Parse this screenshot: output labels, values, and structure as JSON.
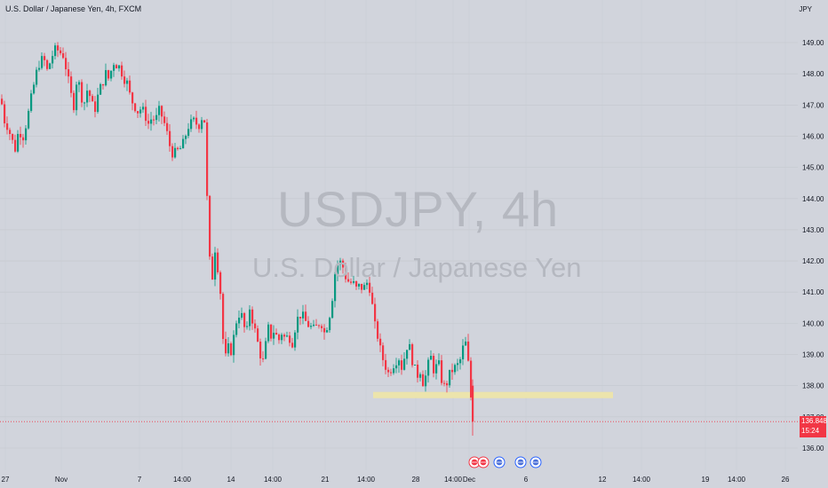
{
  "header": {
    "title": "U.S. Dollar / Japanese Yen, 4h, FXCM"
  },
  "axis": {
    "currency": "JPY"
  },
  "watermark": {
    "symbol": "USDJPY, 4h",
    "name": "U.S. Dollar / Japanese Yen"
  },
  "last_price": {
    "value": "136.848",
    "countdown": "15:24"
  },
  "colors": {
    "up": "#089981",
    "down": "#f23645",
    "background": "#d1d4dc",
    "zone": "#f1e6a3"
  },
  "chart_data": {
    "type": "candlestick",
    "title": "U.S. Dollar / Japanese Yen, 4h, FXCM",
    "xlabel": "",
    "ylabel": "",
    "ylim": [
      135.6,
      149.7
    ],
    "y_ticks": [
      "149.00",
      "148.00",
      "147.00",
      "146.00",
      "145.00",
      "144.00",
      "143.00",
      "142.00",
      "141.00",
      "140.00",
      "139.00",
      "138.00",
      "137.00",
      "136.00"
    ],
    "x_ticks": [
      "27",
      "Nov",
      "7",
      "14:00",
      "14",
      "14:00",
      "21",
      "14:00",
      "28",
      "14:00",
      "Dec",
      "6",
      "12",
      "14:00",
      "19",
      "14:00",
      "26"
    ],
    "grid": true,
    "support_zone": [
      137.6,
      137.8
    ],
    "current_price": 136.848,
    "close_path": [
      [
        0,
        147.2
      ],
      [
        4,
        146.5
      ],
      [
        8,
        146.3
      ],
      [
        12,
        145.9
      ],
      [
        16,
        145.6
      ],
      [
        20,
        146.2
      ],
      [
        25,
        146.0
      ],
      [
        30,
        146.6
      ],
      [
        36,
        147.5
      ],
      [
        42,
        148.3
      ],
      [
        48,
        148.5
      ],
      [
        52,
        148.1
      ],
      [
        58,
        148.6
      ],
      [
        62,
        148.8
      ],
      [
        66,
        148.7
      ],
      [
        70,
        148.6
      ],
      [
        74,
        148.1
      ],
      [
        78,
        147.4
      ],
      [
        82,
        147.0
      ],
      [
        86,
        148.0
      ],
      [
        90,
        147.3
      ],
      [
        94,
        147.1
      ],
      [
        98,
        147.6
      ],
      [
        102,
        147.0
      ],
      [
        106,
        146.9
      ],
      [
        110,
        147.4
      ],
      [
        114,
        147.7
      ],
      [
        118,
        148.0
      ],
      [
        122,
        147.8
      ],
      [
        126,
        148.4
      ],
      [
        130,
        148.3
      ],
      [
        134,
        148.2
      ],
      [
        138,
        147.9
      ],
      [
        142,
        147.7
      ],
      [
        146,
        147.2
      ],
      [
        150,
        147.0
      ],
      [
        154,
        146.8
      ],
      [
        158,
        146.9
      ],
      [
        162,
        146.7
      ],
      [
        166,
        146.4
      ],
      [
        170,
        146.6
      ],
      [
        174,
        146.5
      ],
      [
        178,
        146.8
      ],
      [
        182,
        146.6
      ],
      [
        186,
        146.2
      ],
      [
        190,
        145.7
      ],
      [
        194,
        145.4
      ],
      [
        198,
        145.5
      ],
      [
        202,
        145.6
      ],
      [
        206,
        145.8
      ],
      [
        210,
        146.3
      ],
      [
        214,
        146.4
      ],
      [
        218,
        146.5
      ],
      [
        222,
        146.3
      ],
      [
        226,
        146.6
      ],
      [
        229,
        146.5
      ],
      [
        232,
        144.0
      ],
      [
        235,
        142.0
      ],
      [
        238,
        141.5
      ],
      [
        241,
        142.4
      ],
      [
        244,
        141.8
      ],
      [
        247,
        141.0
      ],
      [
        250,
        139.5
      ],
      [
        253,
        138.9
      ],
      [
        256,
        139.2
      ],
      [
        260,
        139.1
      ],
      [
        264,
        140.0
      ],
      [
        268,
        140.3
      ],
      [
        272,
        140.2
      ],
      [
        276,
        139.5
      ],
      [
        280,
        140.5
      ],
      [
        284,
        140.0
      ],
      [
        288,
        139.5
      ],
      [
        292,
        139.0
      ],
      [
        296,
        138.7
      ],
      [
        300,
        139.9
      ],
      [
        304,
        139.6
      ],
      [
        308,
        139.8
      ],
      [
        312,
        139.4
      ],
      [
        316,
        139.7
      ],
      [
        320,
        139.5
      ],
      [
        324,
        139.6
      ],
      [
        328,
        139.4
      ],
      [
        332,
        140.0
      ],
      [
        336,
        140.3
      ],
      [
        340,
        140.2
      ],
      [
        344,
        140.0
      ],
      [
        348,
        139.9
      ],
      [
        352,
        139.8
      ],
      [
        356,
        139.9
      ],
      [
        360,
        140.1
      ],
      [
        364,
        139.7
      ],
      [
        368,
        140.0
      ],
      [
        372,
        140.6
      ],
      [
        376,
        141.6
      ],
      [
        380,
        142.0
      ],
      [
        384,
        141.9
      ],
      [
        388,
        141.5
      ],
      [
        392,
        141.3
      ],
      [
        396,
        141.3
      ],
      [
        400,
        141.1
      ],
      [
        404,
        141.2
      ],
      [
        408,
        141.1
      ],
      [
        412,
        141.3
      ],
      [
        416,
        141.1
      ],
      [
        420,
        140.0
      ],
      [
        424,
        139.6
      ],
      [
        428,
        139.0
      ],
      [
        432,
        138.7
      ],
      [
        436,
        138.4
      ],
      [
        440,
        138.6
      ],
      [
        444,
        138.8
      ],
      [
        448,
        138.9
      ],
      [
        452,
        138.5
      ],
      [
        456,
        139.3
      ],
      [
        460,
        139.2
      ],
      [
        464,
        138.7
      ],
      [
        468,
        138.3
      ],
      [
        472,
        138.5
      ],
      [
        476,
        138.0
      ],
      [
        480,
        138.6
      ],
      [
        484,
        138.9
      ],
      [
        488,
        138.4
      ],
      [
        492,
        138.8
      ],
      [
        496,
        138.2
      ],
      [
        500,
        137.9
      ],
      [
        504,
        138.3
      ],
      [
        508,
        138.5
      ],
      [
        512,
        138.6
      ],
      [
        516,
        138.7
      ],
      [
        520,
        139.2
      ],
      [
        524,
        139.4
      ],
      [
        528,
        138.0
      ],
      [
        531,
        136.9
      ]
    ]
  }
}
